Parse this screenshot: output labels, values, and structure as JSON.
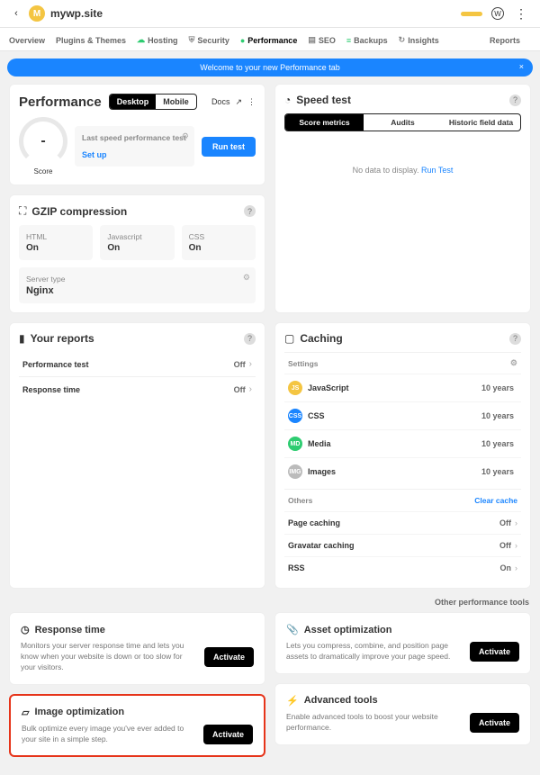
{
  "top": {
    "site": "mywp.site",
    "avatar": "M"
  },
  "tabs": [
    "Overview",
    "Plugins & Themes",
    "Hosting",
    "Security",
    "Performance",
    "SEO",
    "Backups",
    "Insights"
  ],
  "tabs_active_index": 4,
  "tab_colors": [
    "",
    "",
    "#2ecc71",
    "",
    "#2ecc71",
    "",
    "#2ecc71",
    ""
  ],
  "reports_label": "Reports",
  "banner": "Welcome to your new Performance tab",
  "perf": {
    "title": "Performance",
    "seg": [
      "Desktop",
      "Mobile"
    ],
    "docs": "Docs",
    "score_label": "Score",
    "score_value": "-",
    "last_title": "Last speed performance test",
    "setup": "Set up",
    "run": "Run test"
  },
  "speed": {
    "title": "Speed test",
    "seg": [
      "Score metrics",
      "Audits",
      "Historic field data"
    ],
    "nodata": "No data to display.",
    "run": "Run Test"
  },
  "gzip": {
    "title": "GZIP compression",
    "items": [
      {
        "l": "HTML",
        "v": "On"
      },
      {
        "l": "Javascript",
        "v": "On"
      },
      {
        "l": "CSS",
        "v": "On"
      }
    ],
    "server_label": "Server type",
    "server_value": "Nginx"
  },
  "reports": {
    "title": "Your reports",
    "items": [
      {
        "l": "Performance test",
        "v": "Off"
      },
      {
        "l": "Response time",
        "v": "Off"
      }
    ]
  },
  "caching": {
    "title": "Caching",
    "settings_label": "Settings",
    "items": [
      {
        "badge": "JS",
        "color": "#f4c542",
        "l": "JavaScript",
        "v": "10 years"
      },
      {
        "badge": "CSS",
        "color": "#1a85ff",
        "l": "CSS",
        "v": "10 years"
      },
      {
        "badge": "MD",
        "color": "#2ecc71",
        "l": "Media",
        "v": "10 years"
      },
      {
        "badge": "IMG",
        "color": "#bbb",
        "l": "Images",
        "v": "10 years"
      }
    ],
    "others_label": "Others",
    "clear": "Clear cache",
    "others": [
      {
        "l": "Page caching",
        "v": "Off"
      },
      {
        "l": "Gravatar caching",
        "v": "Off"
      },
      {
        "l": "RSS",
        "v": "On"
      }
    ]
  },
  "other_tools": "Other performance tools",
  "tools": {
    "response": {
      "t": "Response time",
      "d": "Monitors your server response time and lets you know when your website is down or too slow for your visitors.",
      "b": "Activate"
    },
    "asset": {
      "t": "Asset optimization",
      "d": "Lets you compress, combine, and position page assets to dramatically improve your page speed.",
      "b": "Activate"
    },
    "image": {
      "t": "Image optimization",
      "d": "Bulk optimize every image you've ever added to your site in a simple step.",
      "b": "Activate"
    },
    "advanced": {
      "t": "Advanced tools",
      "d": "Enable advanced tools to boost your website performance.",
      "b": "Activate"
    }
  }
}
